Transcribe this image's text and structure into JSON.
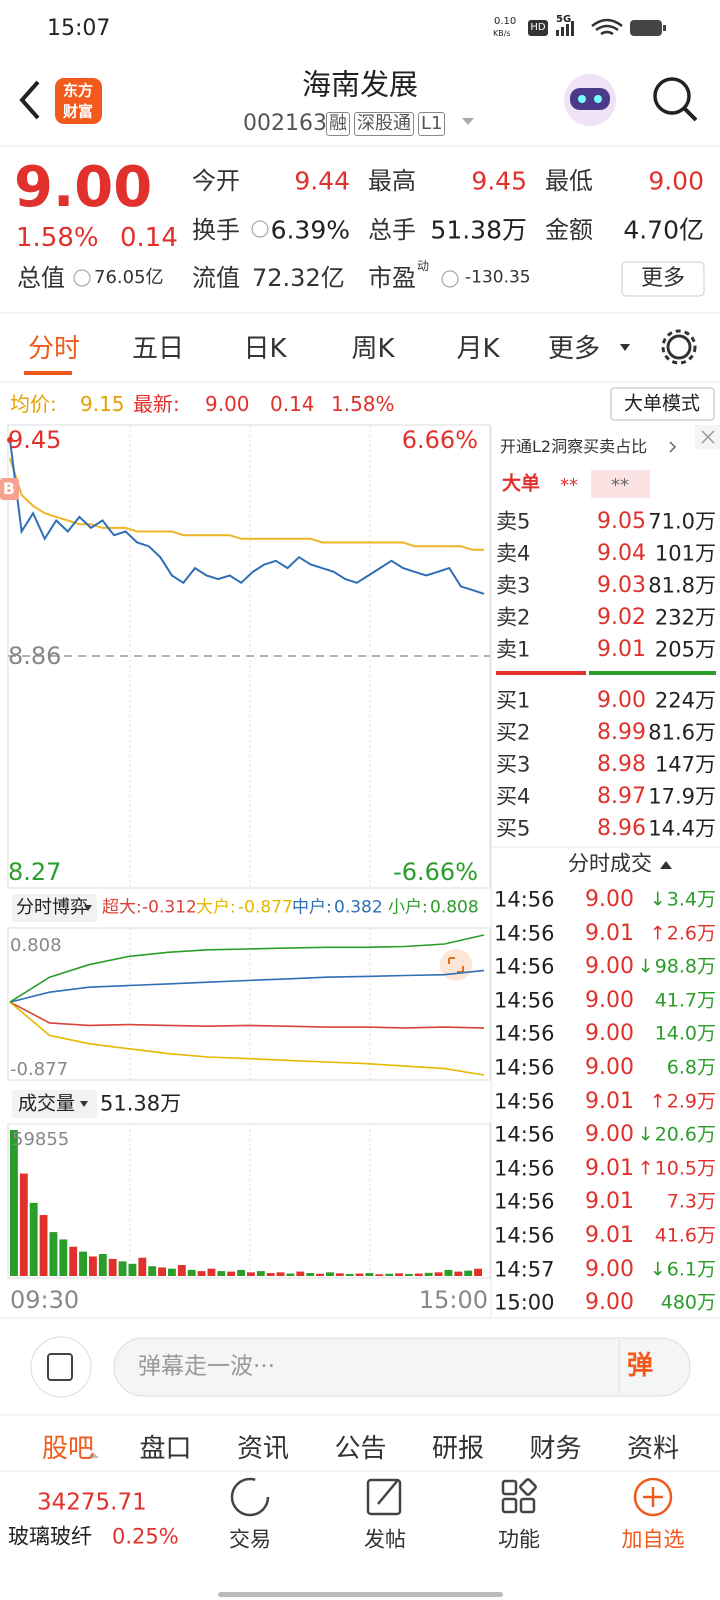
{
  "status_bar": {
    "time": "15:07",
    "speed": "0.10",
    "speed_unit": "KB/s",
    "hd": "HD",
    "network": "5G"
  },
  "header": {
    "logo": [
      "东方",
      "财富"
    ],
    "title": "海南发展",
    "code": "002163",
    "tags": [
      "融",
      "深股通",
      "L1"
    ]
  },
  "quote": {
    "price": "9.00",
    "change_pct": "1.58%",
    "change": "0.14",
    "fields": [
      {
        "label": "今开",
        "value": "9.44",
        "color": "#e0312c"
      },
      {
        "label": "最高",
        "value": "9.45",
        "color": "#e0312c"
      },
      {
        "label": "最低",
        "value": "9.00",
        "color": "#e0312c"
      },
      {
        "label": "换手",
        "value": "6.39%",
        "color": "#222222"
      },
      {
        "label": "总手",
        "value": "51.38万",
        "color": "#222222"
      },
      {
        "label": "金额",
        "value": "4.70亿",
        "color": "#222222"
      }
    ],
    "market_cap": {
      "label": "总值",
      "value": "76.05亿"
    },
    "float_cap": {
      "label": "流值",
      "value": "72.32亿"
    },
    "pe": {
      "label": "市盈",
      "tag": "动",
      "value": "-130.35"
    },
    "more": "更多"
  },
  "tabs": {
    "items": [
      "分时",
      "五日",
      "日K",
      "周K",
      "月K",
      "更多"
    ],
    "active": 0
  },
  "info_line": {
    "avg_label": "均价:",
    "avg": "9.15",
    "latest_label": "最新:",
    "latest": "9.00",
    "change": "0.14",
    "change_pct": "1.58%",
    "mode_button": "大单模式"
  },
  "price_chart": {
    "ylim": [
      8.27,
      9.45
    ],
    "yticks": [
      9.45,
      8.86,
      8.27
    ],
    "y2lim": [
      -6.66,
      6.66
    ],
    "y2ticks": [
      {
        "value": 6.66,
        "label": "6.66%"
      },
      {
        "value": -6.66,
        "label": "-6.66%"
      }
    ],
    "marker": "B",
    "price": {
      "color": "#2e6fb5",
      "values": [
        9.45,
        9.2,
        9.25,
        9.18,
        9.23,
        9.2,
        9.24,
        9.21,
        9.23,
        9.19,
        9.2,
        9.17,
        9.16,
        9.13,
        9.08,
        9.06,
        9.1,
        9.08,
        9.07,
        9.08,
        9.06,
        9.09,
        9.11,
        9.12,
        9.1,
        9.13,
        9.11,
        9.1,
        9.09,
        9.07,
        9.06,
        9.08,
        9.1,
        9.12,
        9.1,
        9.09,
        9.08,
        9.09,
        9.1,
        9.05,
        9.04,
        9.03
      ]
    },
    "avg": {
      "color": "#f0b429",
      "values": [
        9.4,
        9.3,
        9.27,
        9.25,
        9.24,
        9.23,
        9.22,
        9.22,
        9.21,
        9.21,
        9.21,
        9.2,
        9.2,
        9.2,
        9.2,
        9.19,
        9.19,
        9.19,
        9.19,
        9.19,
        9.18,
        9.18,
        9.18,
        9.18,
        9.18,
        9.18,
        9.18,
        9.17,
        9.17,
        9.17,
        9.17,
        9.17,
        9.17,
        9.17,
        9.17,
        9.16,
        9.16,
        9.16,
        9.16,
        9.16,
        9.15,
        9.15
      ]
    }
  },
  "fund_flow": {
    "selector": "分时博弈",
    "ylim": [
      -0.877,
      0.808
    ],
    "yticks": [
      0.808,
      -0.877
    ],
    "series": [
      {
        "name": "超大:",
        "value": "-0.312",
        "color": "#d9433b",
        "values": [
          0,
          -0.25,
          -0.28,
          -0.27,
          -0.28,
          -0.29,
          -0.28,
          -0.29,
          -0.3,
          -0.3,
          -0.31,
          -0.3,
          -0.312
        ]
      },
      {
        "name": "大户:",
        "value": "-0.877",
        "color": "#e6b800",
        "values": [
          0,
          -0.4,
          -0.5,
          -0.56,
          -0.62,
          -0.66,
          -0.68,
          -0.7,
          -0.72,
          -0.74,
          -0.77,
          -0.8,
          -0.877
        ]
      },
      {
        "name": "中户:",
        "value": "0.382",
        "color": "#2e6fb5",
        "values": [
          0,
          0.12,
          0.18,
          0.2,
          0.22,
          0.24,
          0.26,
          0.28,
          0.3,
          0.31,
          0.32,
          0.33,
          0.382
        ]
      },
      {
        "name": "小户:",
        "value": "0.808",
        "color": "#2a9d2a",
        "values": [
          0,
          0.3,
          0.45,
          0.55,
          0.6,
          0.63,
          0.64,
          0.65,
          0.66,
          0.66,
          0.67,
          0.7,
          0.808
        ]
      }
    ]
  },
  "volume": {
    "selector": "成交量",
    "total": "51.38万",
    "ylim": [
      0,
      59855
    ],
    "yticks": [
      59855
    ],
    "x_labels": [
      "09:30",
      "15:00"
    ],
    "values": [
      59855,
      42000,
      30000,
      25000,
      18000,
      15000,
      12000,
      10000,
      8000,
      9000,
      7000,
      6000,
      5000,
      7500,
      4000,
      3500,
      3000,
      4500,
      2500,
      2000,
      3000,
      2000,
      1800,
      2500,
      1500,
      2000,
      1200,
      1500,
      1000,
      1800,
      1200,
      900,
      1500,
      1100,
      800,
      1000,
      1200,
      700,
      900,
      1100,
      800,
      1000,
      1300,
      1500,
      2500,
      1800,
      2200,
      3000
    ],
    "colors": [
      "#2a9d2a",
      "#e0312c",
      "#2a9d2a",
      "#e0312c",
      "#2a9d2a",
      "#2a9d2a",
      "#e0312c",
      "#2a9d2a",
      "#e0312c",
      "#2a9d2a",
      "#e0312c",
      "#2a9d2a",
      "#2a9d2a",
      "#e0312c",
      "#2a9d2a",
      "#e0312c",
      "#2a9d2a",
      "#e0312c",
      "#2a9d2a",
      "#e0312c",
      "#e0312c",
      "#2a9d2a",
      "#e0312c",
      "#2a9d2a",
      "#e0312c",
      "#2a9d2a",
      "#e0312c",
      "#e0312c",
      "#2a9d2a",
      "#e0312c",
      "#2a9d2a",
      "#e0312c",
      "#2a9d2a",
      "#e0312c",
      "#2a9d2a",
      "#e0312c",
      "#2a9d2a",
      "#e0312c",
      "#2a9d2a",
      "#e0312c",
      "#2a9d2a",
      "#e0312c",
      "#2a9d2a",
      "#e0312c",
      "#2a9d2a",
      "#e0312c",
      "#2a9d2a",
      "#e0312c"
    ]
  },
  "l2": {
    "promo": "开通L2洞察买卖占比",
    "big_order": "大单",
    "masked": [
      "**",
      "**"
    ]
  },
  "order_book": {
    "asks": [
      {
        "label": "卖5",
        "price": "9.05",
        "volume": "71.0万"
      },
      {
        "label": "卖4",
        "price": "9.04",
        "volume": "101万"
      },
      {
        "label": "卖3",
        "price": "9.03",
        "volume": "81.8万"
      },
      {
        "label": "卖2",
        "price": "9.02",
        "volume": "232万"
      },
      {
        "label": "卖1",
        "price": "9.01",
        "volume": "205万"
      }
    ],
    "bids": [
      {
        "label": "买1",
        "price": "9.00",
        "volume": "224万"
      },
      {
        "label": "买2",
        "price": "8.99",
        "volume": "81.6万"
      },
      {
        "label": "买3",
        "price": "8.98",
        "volume": "147万"
      },
      {
        "label": "买4",
        "price": "8.97",
        "volume": "17.9万"
      },
      {
        "label": "买5",
        "price": "8.96",
        "volume": "14.4万"
      }
    ]
  },
  "trades": {
    "title": "分时成交",
    "rows": [
      {
        "time": "14:56",
        "price": "9.00",
        "arrow": "↓",
        "volume": "3.4万",
        "color": "#2a9d2a"
      },
      {
        "time": "14:56",
        "price": "9.01",
        "arrow": "↑",
        "volume": "2.6万",
        "color": "#e0312c"
      },
      {
        "time": "14:56",
        "price": "9.00",
        "arrow": "↓",
        "volume": "98.8万",
        "color": "#2a9d2a"
      },
      {
        "time": "14:56",
        "price": "9.00",
        "volume": "41.7万",
        "color": "#2a9d2a"
      },
      {
        "time": "14:56",
        "price": "9.00",
        "volume": "14.0万",
        "color": "#2a9d2a"
      },
      {
        "time": "14:56",
        "price": "9.00",
        "volume": "6.8万",
        "color": "#2a9d2a"
      },
      {
        "time": "14:56",
        "price": "9.01",
        "arrow": "↑",
        "volume": "2.9万",
        "color": "#e0312c"
      },
      {
        "time": "14:56",
        "price": "9.00",
        "arrow": "↓",
        "volume": "20.6万",
        "color": "#2a9d2a"
      },
      {
        "time": "14:56",
        "price": "9.01",
        "arrow": "↑",
        "volume": "10.5万",
        "color": "#e0312c"
      },
      {
        "time": "14:56",
        "price": "9.01",
        "volume": "7.3万",
        "color": "#e0312c"
      },
      {
        "time": "14:56",
        "price": "9.01",
        "volume": "41.6万",
        "color": "#e0312c"
      },
      {
        "time": "14:57",
        "price": "9.00",
        "arrow": "↓",
        "volume": "6.1万",
        "color": "#2a9d2a"
      },
      {
        "time": "15:00",
        "price": "9.00",
        "volume": "480万",
        "color": "#2a9d2a"
      }
    ]
  },
  "comment": {
    "placeholder": "弹幕走一波···",
    "button": "弹"
  },
  "bottom_tabs": {
    "items": [
      "股吧",
      "盘口",
      "资讯",
      "公告",
      "研报",
      "财务",
      "资料"
    ],
    "active": 0
  },
  "nav": {
    "index_value": "34275.71",
    "index_name": "玻璃玻纤",
    "index_change": "0.25%",
    "items": [
      "交易",
      "发帖",
      "功能",
      "加自选"
    ]
  }
}
